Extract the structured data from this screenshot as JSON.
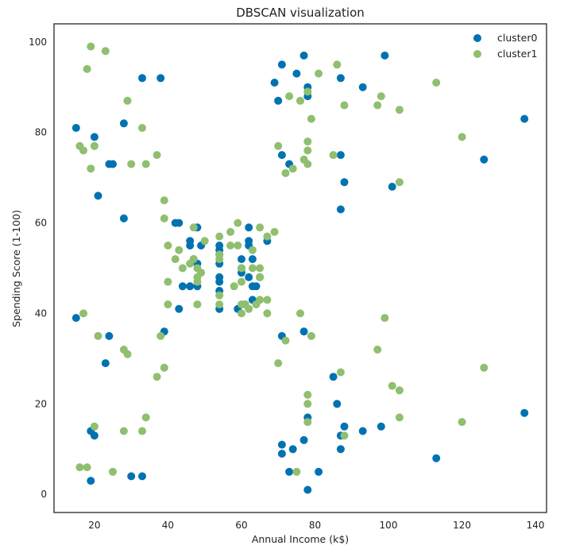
{
  "chart_data": {
    "type": "scatter",
    "title": "DBSCAN visualization",
    "xlabel": "Annual Income (k$)",
    "ylabel": "Spending Score (1-100)",
    "xlim": [
      9,
      143
    ],
    "ylim": [
      -4,
      104
    ],
    "xticks": [
      20,
      40,
      60,
      80,
      100,
      120,
      140
    ],
    "yticks": [
      0,
      20,
      40,
      60,
      80,
      100
    ],
    "grid": false,
    "legend_position": "top-right",
    "series": [
      {
        "name": "cluster0",
        "color": "#0072b2",
        "points": [
          [
            15,
            39
          ],
          [
            15,
            81
          ],
          [
            19,
            3
          ],
          [
            19,
            14
          ],
          [
            20,
            13
          ],
          [
            20,
            79
          ],
          [
            21,
            66
          ],
          [
            23,
            29
          ],
          [
            24,
            35
          ],
          [
            24,
            73
          ],
          [
            25,
            73
          ],
          [
            28,
            61
          ],
          [
            28,
            82
          ],
          [
            30,
            4
          ],
          [
            33,
            4
          ],
          [
            33,
            92
          ],
          [
            38,
            92
          ],
          [
            39,
            36
          ],
          [
            42,
            60
          ],
          [
            43,
            41
          ],
          [
            43,
            60
          ],
          [
            44,
            46
          ],
          [
            46,
            46
          ],
          [
            46,
            55
          ],
          [
            46,
            56
          ],
          [
            47,
            52
          ],
          [
            48,
            59
          ],
          [
            48,
            51
          ],
          [
            48,
            46
          ],
          [
            49,
            55
          ],
          [
            54,
            47
          ],
          [
            54,
            45
          ],
          [
            54,
            41
          ],
          [
            54,
            48
          ],
          [
            54,
            51
          ],
          [
            54,
            53
          ],
          [
            54,
            55
          ],
          [
            54,
            54
          ],
          [
            59,
            41
          ],
          [
            60,
            52
          ],
          [
            60,
            49
          ],
          [
            60,
            50
          ],
          [
            61,
            42
          ],
          [
            62,
            48
          ],
          [
            62,
            55
          ],
          [
            62,
            56
          ],
          [
            62,
            59
          ],
          [
            63,
            43
          ],
          [
            63,
            52
          ],
          [
            63,
            46
          ],
          [
            64,
            46
          ],
          [
            65,
            48
          ],
          [
            67,
            56
          ],
          [
            69,
            91
          ],
          [
            70,
            87
          ],
          [
            71,
            9
          ],
          [
            71,
            11
          ],
          [
            71,
            35
          ],
          [
            71,
            75
          ],
          [
            71,
            95
          ],
          [
            73,
            5
          ],
          [
            73,
            73
          ],
          [
            74,
            10
          ],
          [
            75,
            93
          ],
          [
            77,
            12
          ],
          [
            77,
            36
          ],
          [
            77,
            97
          ],
          [
            78,
            1
          ],
          [
            78,
            17
          ],
          [
            78,
            88
          ],
          [
            78,
            90
          ],
          [
            81,
            5
          ],
          [
            85,
            26
          ],
          [
            86,
            20
          ],
          [
            87,
            10
          ],
          [
            87,
            13
          ],
          [
            87,
            63
          ],
          [
            87,
            75
          ],
          [
            87,
            92
          ],
          [
            88,
            15
          ],
          [
            88,
            69
          ],
          [
            93,
            14
          ],
          [
            93,
            90
          ],
          [
            98,
            15
          ],
          [
            99,
            97
          ],
          [
            101,
            68
          ],
          [
            113,
            8
          ],
          [
            126,
            74
          ],
          [
            137,
            18
          ],
          [
            137,
            83
          ]
        ]
      },
      {
        "name": "cluster1",
        "color": "#8fbf6f",
        "points": [
          [
            16,
            6
          ],
          [
            16,
            77
          ],
          [
            17,
            40
          ],
          [
            17,
            76
          ],
          [
            18,
            6
          ],
          [
            18,
            94
          ],
          [
            19,
            72
          ],
          [
            19,
            99
          ],
          [
            20,
            15
          ],
          [
            20,
            77
          ],
          [
            21,
            35
          ],
          [
            23,
            98
          ],
          [
            25,
            5
          ],
          [
            28,
            14
          ],
          [
            28,
            32
          ],
          [
            29,
            31
          ],
          [
            29,
            87
          ],
          [
            30,
            73
          ],
          [
            33,
            14
          ],
          [
            33,
            81
          ],
          [
            34,
            17
          ],
          [
            34,
            73
          ],
          [
            37,
            26
          ],
          [
            37,
            75
          ],
          [
            38,
            35
          ],
          [
            39,
            28
          ],
          [
            39,
            61
          ],
          [
            39,
            65
          ],
          [
            40,
            42
          ],
          [
            40,
            47
          ],
          [
            40,
            55
          ],
          [
            42,
            52
          ],
          [
            43,
            54
          ],
          [
            44,
            50
          ],
          [
            46,
            51
          ],
          [
            47,
            52
          ],
          [
            47,
            59
          ],
          [
            48,
            48
          ],
          [
            48,
            47
          ],
          [
            48,
            50
          ],
          [
            48,
            42
          ],
          [
            49,
            49
          ],
          [
            50,
            56
          ],
          [
            54,
            42
          ],
          [
            54,
            44
          ],
          [
            54,
            52
          ],
          [
            54,
            53
          ],
          [
            54,
            57
          ],
          [
            57,
            58
          ],
          [
            57,
            55
          ],
          [
            58,
            46
          ],
          [
            59,
            55
          ],
          [
            59,
            60
          ],
          [
            60,
            40
          ],
          [
            60,
            42
          ],
          [
            60,
            47
          ],
          [
            60,
            50
          ],
          [
            61,
            42
          ],
          [
            62,
            41
          ],
          [
            63,
            54
          ],
          [
            63,
            50
          ],
          [
            64,
            42
          ],
          [
            65,
            43
          ],
          [
            65,
            48
          ],
          [
            65,
            50
          ],
          [
            65,
            59
          ],
          [
            67,
            57
          ],
          [
            67,
            43
          ],
          [
            67,
            40
          ],
          [
            69,
            58
          ],
          [
            70,
            29
          ],
          [
            70,
            77
          ],
          [
            72,
            34
          ],
          [
            72,
            71
          ],
          [
            73,
            88
          ],
          [
            74,
            72
          ],
          [
            75,
            5
          ],
          [
            76,
            40
          ],
          [
            76,
            87
          ],
          [
            77,
            74
          ],
          [
            78,
            16
          ],
          [
            78,
            20
          ],
          [
            78,
            22
          ],
          [
            78,
            73
          ],
          [
            78,
            76
          ],
          [
            78,
            78
          ],
          [
            78,
            89
          ],
          [
            79,
            35
          ],
          [
            79,
            83
          ],
          [
            81,
            93
          ],
          [
            85,
            75
          ],
          [
            86,
            95
          ],
          [
            87,
            27
          ],
          [
            88,
            13
          ],
          [
            88,
            86
          ],
          [
            97,
            32
          ],
          [
            97,
            86
          ],
          [
            98,
            88
          ],
          [
            99,
            39
          ],
          [
            101,
            24
          ],
          [
            103,
            17
          ],
          [
            103,
            23
          ],
          [
            103,
            69
          ],
          [
            103,
            85
          ],
          [
            113,
            91
          ],
          [
            120,
            16
          ],
          [
            120,
            79
          ],
          [
            126,
            28
          ]
        ]
      }
    ]
  }
}
